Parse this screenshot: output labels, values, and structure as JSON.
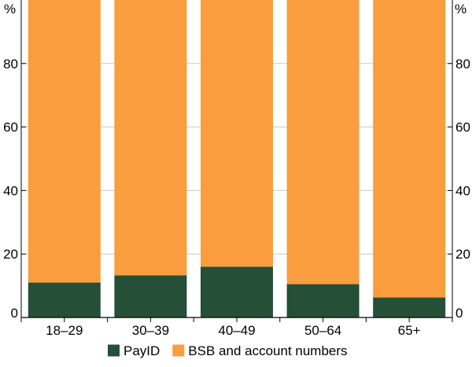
{
  "chart_data": {
    "type": "bar",
    "stacked": true,
    "categories": [
      "18–29",
      "30–39",
      "40–49",
      "50–64",
      "65+"
    ],
    "series": [
      {
        "name": "PayID",
        "values": [
          11,
          13.3,
          16,
          10.5,
          6.3
        ],
        "color": "#264f38"
      },
      {
        "name": "BSB and account numbers",
        "values": [
          89,
          86.7,
          84,
          89.5,
          93.7
        ],
        "color": "#f99d3f"
      }
    ],
    "unit_label": "%",
    "ylim": [
      0,
      100
    ],
    "yticks": [
      "0",
      "20",
      "40",
      "60",
      "80"
    ],
    "grid": true,
    "legend_position": "bottom-center"
  }
}
